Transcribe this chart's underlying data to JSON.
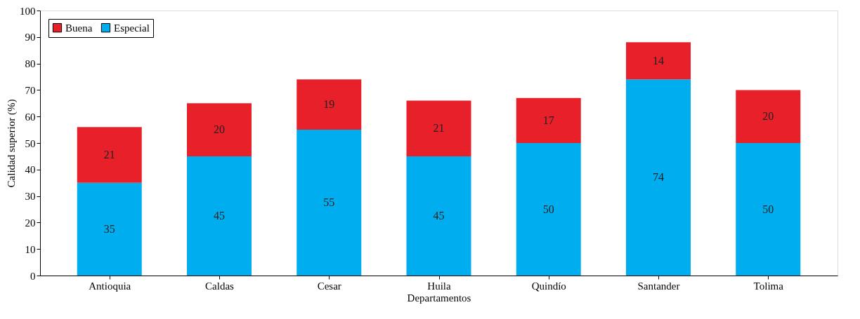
{
  "chart_data": {
    "type": "bar",
    "stacked": true,
    "xlabel": "Departamentos",
    "ylabel": "Calidad superior (%)",
    "categories": [
      "Antioquia",
      "Caldas",
      "Cesar",
      "Huila",
      "Quindío",
      "Santander",
      "Tolima"
    ],
    "series": [
      {
        "name": "Especial",
        "color": "#00aeef",
        "values": [
          35,
          45,
          55,
          45,
          50,
          74,
          50
        ]
      },
      {
        "name": "Buena",
        "color": "#e8202a",
        "values": [
          21,
          20,
          19,
          21,
          17,
          14,
          20
        ]
      }
    ],
    "ylim": [
      0,
      100
    ],
    "yticks": [
      0,
      10,
      20,
      30,
      40,
      50,
      60,
      70,
      80,
      90,
      100
    ],
    "data_labels": true,
    "grid": false,
    "legend": "top left"
  }
}
